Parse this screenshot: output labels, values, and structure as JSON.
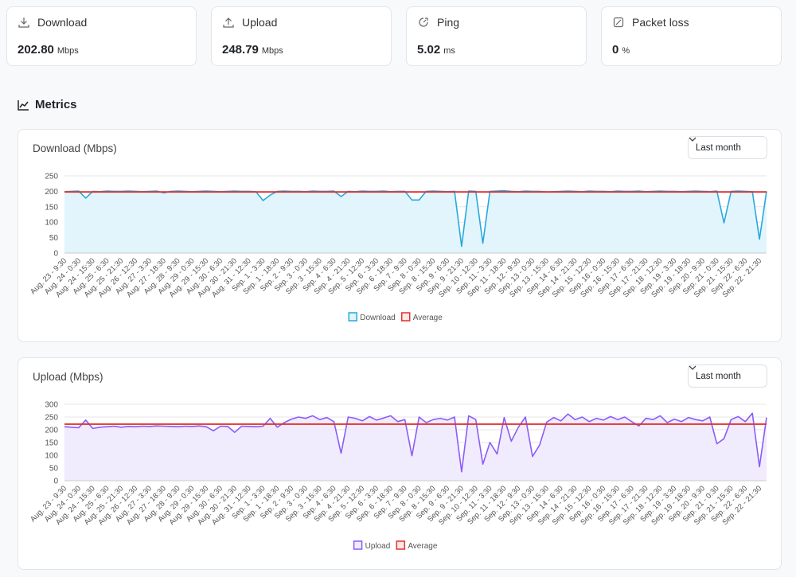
{
  "stats": [
    {
      "label": "Download",
      "value": "202.80",
      "unit": "Mbps"
    },
    {
      "label": "Upload",
      "value": "248.79",
      "unit": "Mbps"
    },
    {
      "label": "Ping",
      "value": "5.02",
      "unit": "ms"
    },
    {
      "label": "Packet loss",
      "value": "0",
      "unit": "%"
    }
  ],
  "section_title": "Metrics",
  "chart_data": [
    {
      "type": "line",
      "title": "Download (Mbps)",
      "range": "Last month",
      "categories": [
        "Aug. 23 - 9:30",
        null,
        "Aug. 24 - 0:30",
        null,
        "Aug. 24 - 15:30",
        null,
        "Aug. 25 - 6:30",
        null,
        "Aug. 25 - 21:30",
        null,
        "Aug. 26 - 12:30",
        null,
        "Aug. 27 - 3:30",
        null,
        "Aug. 27 - 18:30",
        null,
        "Aug. 28 - 9:30",
        null,
        "Aug. 29 - 0:30",
        null,
        "Aug. 29 - 15:30",
        null,
        "Aug. 30 - 6:30",
        null,
        "Aug. 30 - 21:30",
        null,
        "Aug. 31 - 12:30",
        null,
        "Sep. 1 - 3:30",
        null,
        "Sep. 1 - 18:30",
        null,
        "Sep. 2 - 9:30",
        null,
        "Sep. 3 - 0:30",
        null,
        "Sep. 3 - 15:30",
        null,
        "Sep. 4 - 6:30",
        null,
        "Sep. 4 - 21:30",
        null,
        "Sep. 5 - 12:30",
        null,
        "Sep. 6 - 3:30",
        null,
        "Sep. 6 - 18:30",
        null,
        "Sep. 7 - 9:30",
        null,
        "Sep. 8 - 0:30",
        null,
        "Sep. 8 - 15:30",
        null,
        "Sep. 9 - 6:30",
        null,
        "Sep. 9 - 21:30",
        null,
        "Sep. 10 - 12:30",
        null,
        "Sep. 11 - 3:30",
        null,
        "Sep. 11 - 18:30",
        null,
        "Sep. 12 - 9:30",
        null,
        "Sep. 13 - 0:30",
        null,
        "Sep. 13 - 15:30",
        null,
        "Sep. 14 - 6:30",
        null,
        "Sep. 14 - 21:30",
        null,
        "Sep. 15 - 12:30",
        null,
        "Sep. 16 - 0:30",
        null,
        "Sep. 16 - 15:30",
        null,
        "Sep. 17 - 6:30",
        null,
        "Sep. 17 - 21:30",
        null,
        "Sep. 18 - 12:30",
        null,
        "Sep. 19 - 3:30",
        null,
        "Sep. 19 - 18:30",
        null,
        "Sep. 20 - 9:30",
        null,
        "Sep. 21 - 0:30",
        null,
        "Sep. 21 - 15:30",
        null,
        "Sep. 22 - 6:30",
        null,
        "Sep. 22 - 21:30",
        null
      ],
      "series": [
        {
          "name": "Download",
          "color": "#27a9dc",
          "fill_color": "#e2f5fc",
          "values": [
            199,
            200,
            201,
            178,
            200,
            199,
            201,
            200,
            200,
            201,
            200,
            199,
            200,
            201,
            195,
            200,
            201,
            200,
            199,
            200,
            201,
            200,
            199,
            200,
            201,
            200,
            200,
            199,
            170,
            188,
            200,
            201,
            200,
            200,
            199,
            201,
            200,
            200,
            201,
            183,
            200,
            199,
            201,
            200,
            200,
            201,
            199,
            200,
            200,
            172,
            172,
            200,
            201,
            200,
            199,
            200,
            22,
            201,
            200,
            32,
            200,
            201,
            202,
            200,
            199,
            201,
            200,
            200,
            198,
            199,
            200,
            201,
            200,
            199,
            201,
            200,
            200,
            199,
            201,
            200,
            200,
            201,
            199,
            200,
            201,
            200,
            200,
            199,
            200,
            201,
            200,
            199,
            201,
            98,
            200,
            201,
            200,
            199,
            45,
            200
          ]
        }
      ],
      "average": {
        "name": "Average",
        "color": "#e03131",
        "value": 198
      },
      "ylim": [
        0,
        250
      ],
      "yticks": [
        0,
        50,
        100,
        150,
        200,
        250
      ],
      "grid": true
    },
    {
      "type": "line",
      "title": "Upload (Mbps)",
      "range": "Last month",
      "categories": [
        "Aug. 23 - 9:30",
        null,
        "Aug. 24 - 0:30",
        null,
        "Aug. 24 - 15:30",
        null,
        "Aug. 25 - 6:30",
        null,
        "Aug. 25 - 21:30",
        null,
        "Aug. 26 - 12:30",
        null,
        "Aug. 27 - 3:30",
        null,
        "Aug. 27 - 18:30",
        null,
        "Aug. 28 - 9:30",
        null,
        "Aug. 29 - 0:30",
        null,
        "Aug. 29 - 15:30",
        null,
        "Aug. 30 - 6:30",
        null,
        "Aug. 30 - 21:30",
        null,
        "Aug. 31 - 12:30",
        null,
        "Sep. 1 - 3:30",
        null,
        "Sep. 1 - 18:30",
        null,
        "Sep. 2 - 9:30",
        null,
        "Sep. 3 - 0:30",
        null,
        "Sep. 3 - 15:30",
        null,
        "Sep. 4 - 6:30",
        null,
        "Sep. 4 - 21:30",
        null,
        "Sep. 5 - 12:30",
        null,
        "Sep. 6 - 3:30",
        null,
        "Sep. 6 - 18:30",
        null,
        "Sep. 7 - 9:30",
        null,
        "Sep. 8 - 0:30",
        null,
        "Sep. 8 - 15:30",
        null,
        "Sep. 9 - 6:30",
        null,
        "Sep. 9 - 21:30",
        null,
        "Sep. 10 - 12:30",
        null,
        "Sep. 11 - 3:30",
        null,
        "Sep. 11 - 18:30",
        null,
        "Sep. 12 - 9:30",
        null,
        "Sep. 13 - 0:30",
        null,
        "Sep. 13 - 15:30",
        null,
        "Sep. 14 - 6:30",
        null,
        "Sep. 14 - 21:30",
        null,
        "Sep. 15 - 12:30",
        null,
        "Sep. 16 - 0:30",
        null,
        "Sep. 16 - 15:30",
        null,
        "Sep. 17 - 6:30",
        null,
        "Sep. 17 - 21:30",
        null,
        "Sep. 18 - 12:30",
        null,
        "Sep. 19 - 3:30",
        null,
        "Sep. 19 - 18:30",
        null,
        "Sep. 20 - 9:30",
        null,
        "Sep. 21 - 0:30",
        null,
        "Sep. 21 - 15:30",
        null,
        "Sep. 22 - 6:30",
        null,
        "Sep. 22 - 21:30",
        null
      ],
      "series": [
        {
          "name": "Upload",
          "color": "#8b5cf6",
          "fill_color": "#f1ebfe",
          "values": [
            212,
            210,
            208,
            238,
            205,
            210,
            212,
            214,
            210,
            213,
            212,
            214,
            213,
            215,
            214,
            213,
            212,
            214,
            213,
            215,
            212,
            196,
            214,
            213,
            190,
            214,
            213,
            212,
            214,
            245,
            210,
            228,
            242,
            250,
            245,
            255,
            240,
            248,
            232,
            108,
            250,
            245,
            235,
            252,
            238,
            246,
            255,
            232,
            240,
            98,
            250,
            228,
            240,
            245,
            238,
            250,
            35,
            255,
            240,
            65,
            150,
            105,
            248,
            155,
            210,
            250,
            95,
            140,
            230,
            248,
            235,
            262,
            240,
            250,
            232,
            245,
            238,
            252,
            240,
            250,
            232,
            215,
            245,
            240,
            255,
            228,
            242,
            232,
            248,
            240,
            235,
            250,
            145,
            165,
            240,
            252,
            232,
            265,
            55,
            248
          ]
        }
      ],
      "average": {
        "name": "Average",
        "color": "#e03131",
        "value": 222
      },
      "ylim": [
        0,
        300
      ],
      "yticks": [
        0,
        50,
        100,
        150,
        200,
        250,
        300
      ],
      "grid": true
    }
  ]
}
